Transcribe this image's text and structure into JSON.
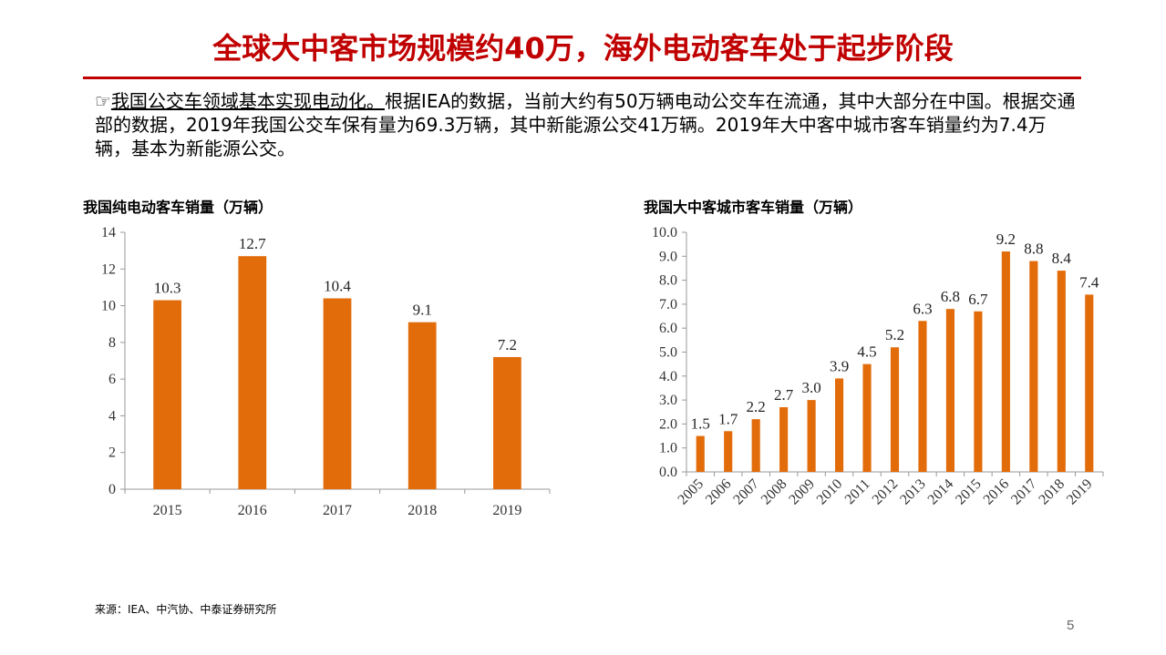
{
  "header": {
    "title": "全球大中客市场规模约40万，海外电动客车处于起步阶段"
  },
  "intro": {
    "icon": "☞",
    "highlight": "我国公交车领域基本实现电动化。",
    "text": "根据IEA的数据，当前大约有50万辆电动公交车在流通，其中大部分在中国。根据交通部的数据，2019年我国公交车保有量为69.3万辆，其中新能源公交41万辆。2019年大中客中城市客车销量约为7.4万辆，基本为新能源公交。"
  },
  "colors": {
    "bar": "#e36c0a",
    "title": "#c00000"
  },
  "chart_data": [
    {
      "type": "bar",
      "title": "我国纯电动客车销量（万辆）",
      "categories": [
        "2015",
        "2016",
        "2017",
        "2018",
        "2019"
      ],
      "values": [
        10.3,
        12.7,
        10.4,
        9.1,
        7.2
      ],
      "data_labels": [
        "10.3",
        "12.7",
        "10.4",
        "9.1",
        "7.2"
      ],
      "y_ticks": [
        "0",
        "2",
        "4",
        "6",
        "8",
        "10",
        "12",
        "14"
      ],
      "ylim": [
        0,
        14
      ],
      "grid": false
    },
    {
      "type": "bar",
      "title": "我国大中客城市客车销量（万辆）",
      "categories": [
        "2005",
        "2006",
        "2007",
        "2008",
        "2009",
        "2010",
        "2011",
        "2012",
        "2013",
        "2014",
        "2015",
        "2016",
        "2017",
        "2018",
        "2019"
      ],
      "values": [
        1.5,
        1.7,
        2.2,
        2.7,
        3.0,
        3.9,
        4.5,
        5.2,
        6.3,
        6.8,
        6.7,
        9.2,
        8.8,
        8.4,
        7.4
      ],
      "data_labels": [
        "1.5",
        "1.7",
        "2.2",
        "2.7",
        "3.0",
        "3.9",
        "4.5",
        "5.2",
        "6.3",
        "6.8",
        "6.7",
        "9.2",
        "8.8",
        "8.4",
        "7.4"
      ],
      "y_ticks": [
        "0.0",
        "1.0",
        "2.0",
        "3.0",
        "4.0",
        "5.0",
        "6.0",
        "7.0",
        "8.0",
        "9.0",
        "10.0"
      ],
      "ylim": [
        0,
        10
      ],
      "grid": false
    }
  ],
  "footer": {
    "source": "来源：IEA、中汽协、中泰证券研究所",
    "page": "5"
  }
}
